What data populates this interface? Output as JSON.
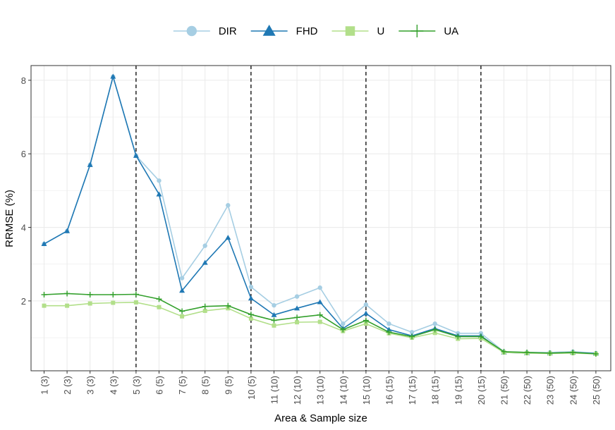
{
  "chart_data": {
    "type": "line",
    "xlabel": "Area & Sample size",
    "ylabel": "RRMSE (%)",
    "categories": [
      "1 (3)",
      "2 (3)",
      "3 (3)",
      "4 (3)",
      "5 (3)",
      "6 (5)",
      "7 (5)",
      "8 (5)",
      "9 (5)",
      "10 (5)",
      "11 (10)",
      "12 (10)",
      "13 (10)",
      "14 (10)",
      "15 (10)",
      "16 (15)",
      "17 (15)",
      "18 (15)",
      "19 (15)",
      "20 (15)",
      "21 (50)",
      "22 (50)",
      "23 (50)",
      "24 (50)",
      "25 (50)"
    ],
    "yticks": [
      2,
      4,
      6,
      8
    ],
    "ylim": [
      0.1,
      8.4
    ],
    "vlines_after_category": [
      "5 (3)",
      "10 (5)",
      "15 (10)",
      "20 (15)"
    ],
    "grid": true,
    "legend_position": "top",
    "series": [
      {
        "name": "DIR",
        "color": "#a6cee3",
        "marker": "circle",
        "values": [
          3.55,
          3.9,
          5.7,
          8.1,
          5.95,
          5.27,
          2.62,
          3.5,
          4.6,
          2.38,
          1.88,
          2.12,
          2.36,
          1.38,
          1.9,
          1.38,
          1.15,
          1.38,
          1.12,
          1.12,
          0.62,
          0.6,
          0.6,
          0.62,
          0.58
        ]
      },
      {
        "name": "FHD",
        "color": "#1f78b4",
        "marker": "triangle",
        "values": [
          3.55,
          3.9,
          5.7,
          8.1,
          5.95,
          4.9,
          2.28,
          3.04,
          3.72,
          2.07,
          1.62,
          1.8,
          1.97,
          1.25,
          1.66,
          1.22,
          1.05,
          1.25,
          1.05,
          1.05,
          0.6,
          0.58,
          0.58,
          0.6,
          0.57
        ]
      },
      {
        "name": "U",
        "color": "#b2df8a",
        "marker": "square",
        "values": [
          1.87,
          1.87,
          1.93,
          1.95,
          1.96,
          1.83,
          1.58,
          1.73,
          1.8,
          1.52,
          1.33,
          1.42,
          1.43,
          1.18,
          1.38,
          1.12,
          1.0,
          1.13,
          0.97,
          0.98,
          0.6,
          0.58,
          0.57,
          0.58,
          0.56
        ]
      },
      {
        "name": "UA",
        "color": "#33a02c",
        "marker": "plus",
        "values": [
          2.17,
          2.2,
          2.17,
          2.17,
          2.18,
          2.05,
          1.72,
          1.85,
          1.87,
          1.63,
          1.47,
          1.55,
          1.62,
          1.22,
          1.47,
          1.15,
          1.03,
          1.22,
          1.03,
          1.03,
          0.62,
          0.6,
          0.58,
          0.6,
          0.56
        ]
      }
    ]
  }
}
